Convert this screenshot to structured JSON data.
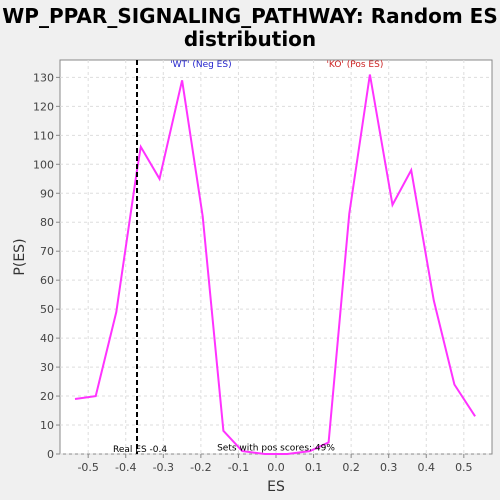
{
  "chart_data": {
    "type": "line",
    "title_lines": [
      "WP_PPAR_SIGNALING_PATHWAY: Random ES",
      "distribution"
    ],
    "xlabel": "ES",
    "ylabel": "P(ES)",
    "xlim": [
      -0.575,
      0.575
    ],
    "ylim": [
      0,
      136
    ],
    "x_ticks": [
      -0.5,
      -0.4,
      -0.3,
      -0.2,
      -0.1,
      0.0,
      0.1,
      0.2,
      0.3,
      0.4,
      0.5
    ],
    "x_tick_labels": [
      "-0.5",
      "-0.4",
      "-0.3",
      "-0.2",
      "-0.1",
      "0.0",
      "0.1",
      "0.2",
      "0.3",
      "0.4",
      "0.5"
    ],
    "y_ticks": [
      0,
      10,
      20,
      30,
      40,
      50,
      60,
      70,
      80,
      90,
      100,
      110,
      120,
      130
    ],
    "y_tick_labels": [
      "0",
      "10",
      "20",
      "30",
      "40",
      "50",
      "60",
      "70",
      "80",
      "90",
      "100",
      "110",
      "120",
      "130"
    ],
    "grid": true,
    "series": [
      {
        "color": "#ff33ff",
        "x": [
          -0.535,
          -0.48,
          -0.425,
          -0.37,
          -0.36,
          -0.31,
          -0.25,
          -0.195,
          -0.14,
          -0.09,
          -0.03,
          0.03,
          0.09,
          0.14,
          0.195,
          0.25,
          0.31,
          0.36,
          0.42,
          0.475,
          0.53
        ],
        "y": [
          19,
          20,
          49,
          98,
          106,
          95,
          129,
          82,
          8,
          1,
          0,
          0,
          1,
          4,
          83,
          131,
          86,
          98,
          53,
          24,
          13
        ]
      }
    ],
    "real_es": {
      "x": -0.37,
      "label": "Real ES -0.4"
    },
    "annotations": [
      {
        "text": "'WT' (Neg ES)",
        "x": -0.2,
        "y": 133.5,
        "color": "#2222cc"
      },
      {
        "text": "'KO' (Pos ES)",
        "x": 0.21,
        "y": 133.5,
        "color": "#cc2222"
      },
      {
        "text": "Sets with pos scores: 49%",
        "x": 0.0,
        "y": 1.2,
        "color": "#000000"
      }
    ]
  }
}
